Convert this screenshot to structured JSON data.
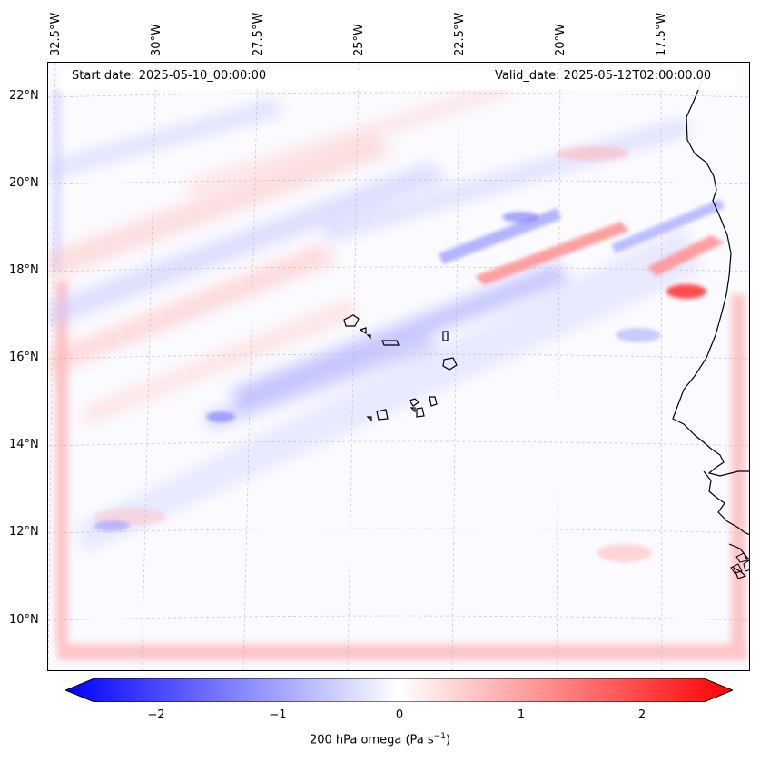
{
  "header": {
    "start_date": "Start date: 2025-05-10_00:00:00",
    "valid_date": "Valid_date: 2025-05-12T02:00:00.00"
  },
  "axes": {
    "lon_labels": [
      "32.5°W",
      "30°W",
      "27.5°W",
      "25°W",
      "22.5°W",
      "20°W",
      "17.5°W"
    ],
    "lat_labels": [
      "22°N",
      "20°N",
      "18°N",
      "16°N",
      "14°N",
      "12°N",
      "10°N"
    ]
  },
  "colorbar": {
    "ticks": [
      "−2",
      "−1",
      "0",
      "1",
      "2"
    ],
    "tick_values": [
      -2,
      -1,
      0,
      1,
      2
    ],
    "range": [
      -2.5,
      2.5
    ],
    "label": "200 hPa omega (Pa s",
    "label_sup": "−1",
    "label_end": ")",
    "colors": {
      "neg": "#0000ff",
      "zero": "#ffffff",
      "pos": "#ff0000"
    }
  }
}
